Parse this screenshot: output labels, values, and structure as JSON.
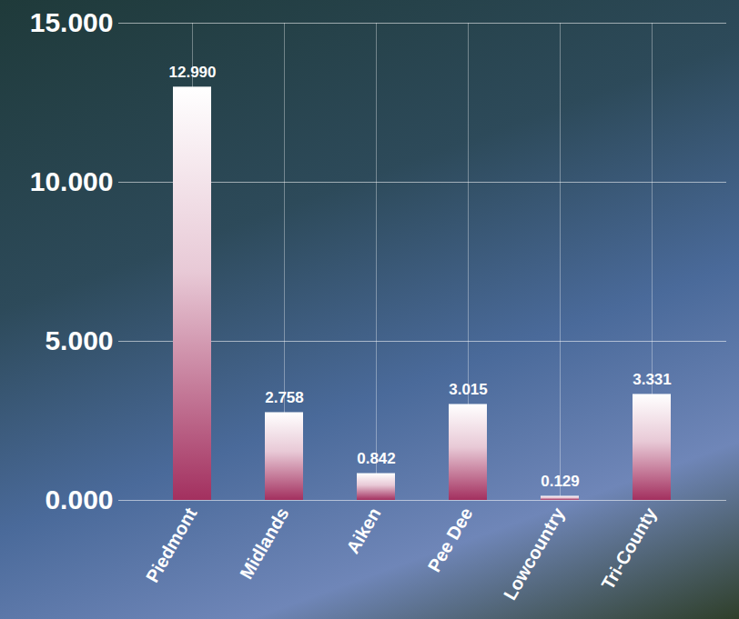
{
  "chart_data": {
    "type": "bar",
    "categories": [
      "Piedmont",
      "Midlands",
      "Aiken",
      "Pee Dee",
      "Lowcountry",
      "Tri-County"
    ],
    "values": [
      12.99,
      2.758,
      0.842,
      3.015,
      0.129,
      3.331
    ],
    "value_labels": [
      "12.990",
      "2.758",
      "0.842",
      "3.015",
      "0.129",
      "3.331"
    ],
    "color": "#a3305f",
    "ylim": [
      0,
      15
    ],
    "yticks": [
      {
        "value": 0,
        "label": "0.000"
      },
      {
        "value": 5,
        "label": "5.000"
      },
      {
        "value": 10,
        "label": "10.000"
      },
      {
        "value": 15,
        "label": "15.000"
      }
    ],
    "grid": true,
    "data_labels": true
  }
}
